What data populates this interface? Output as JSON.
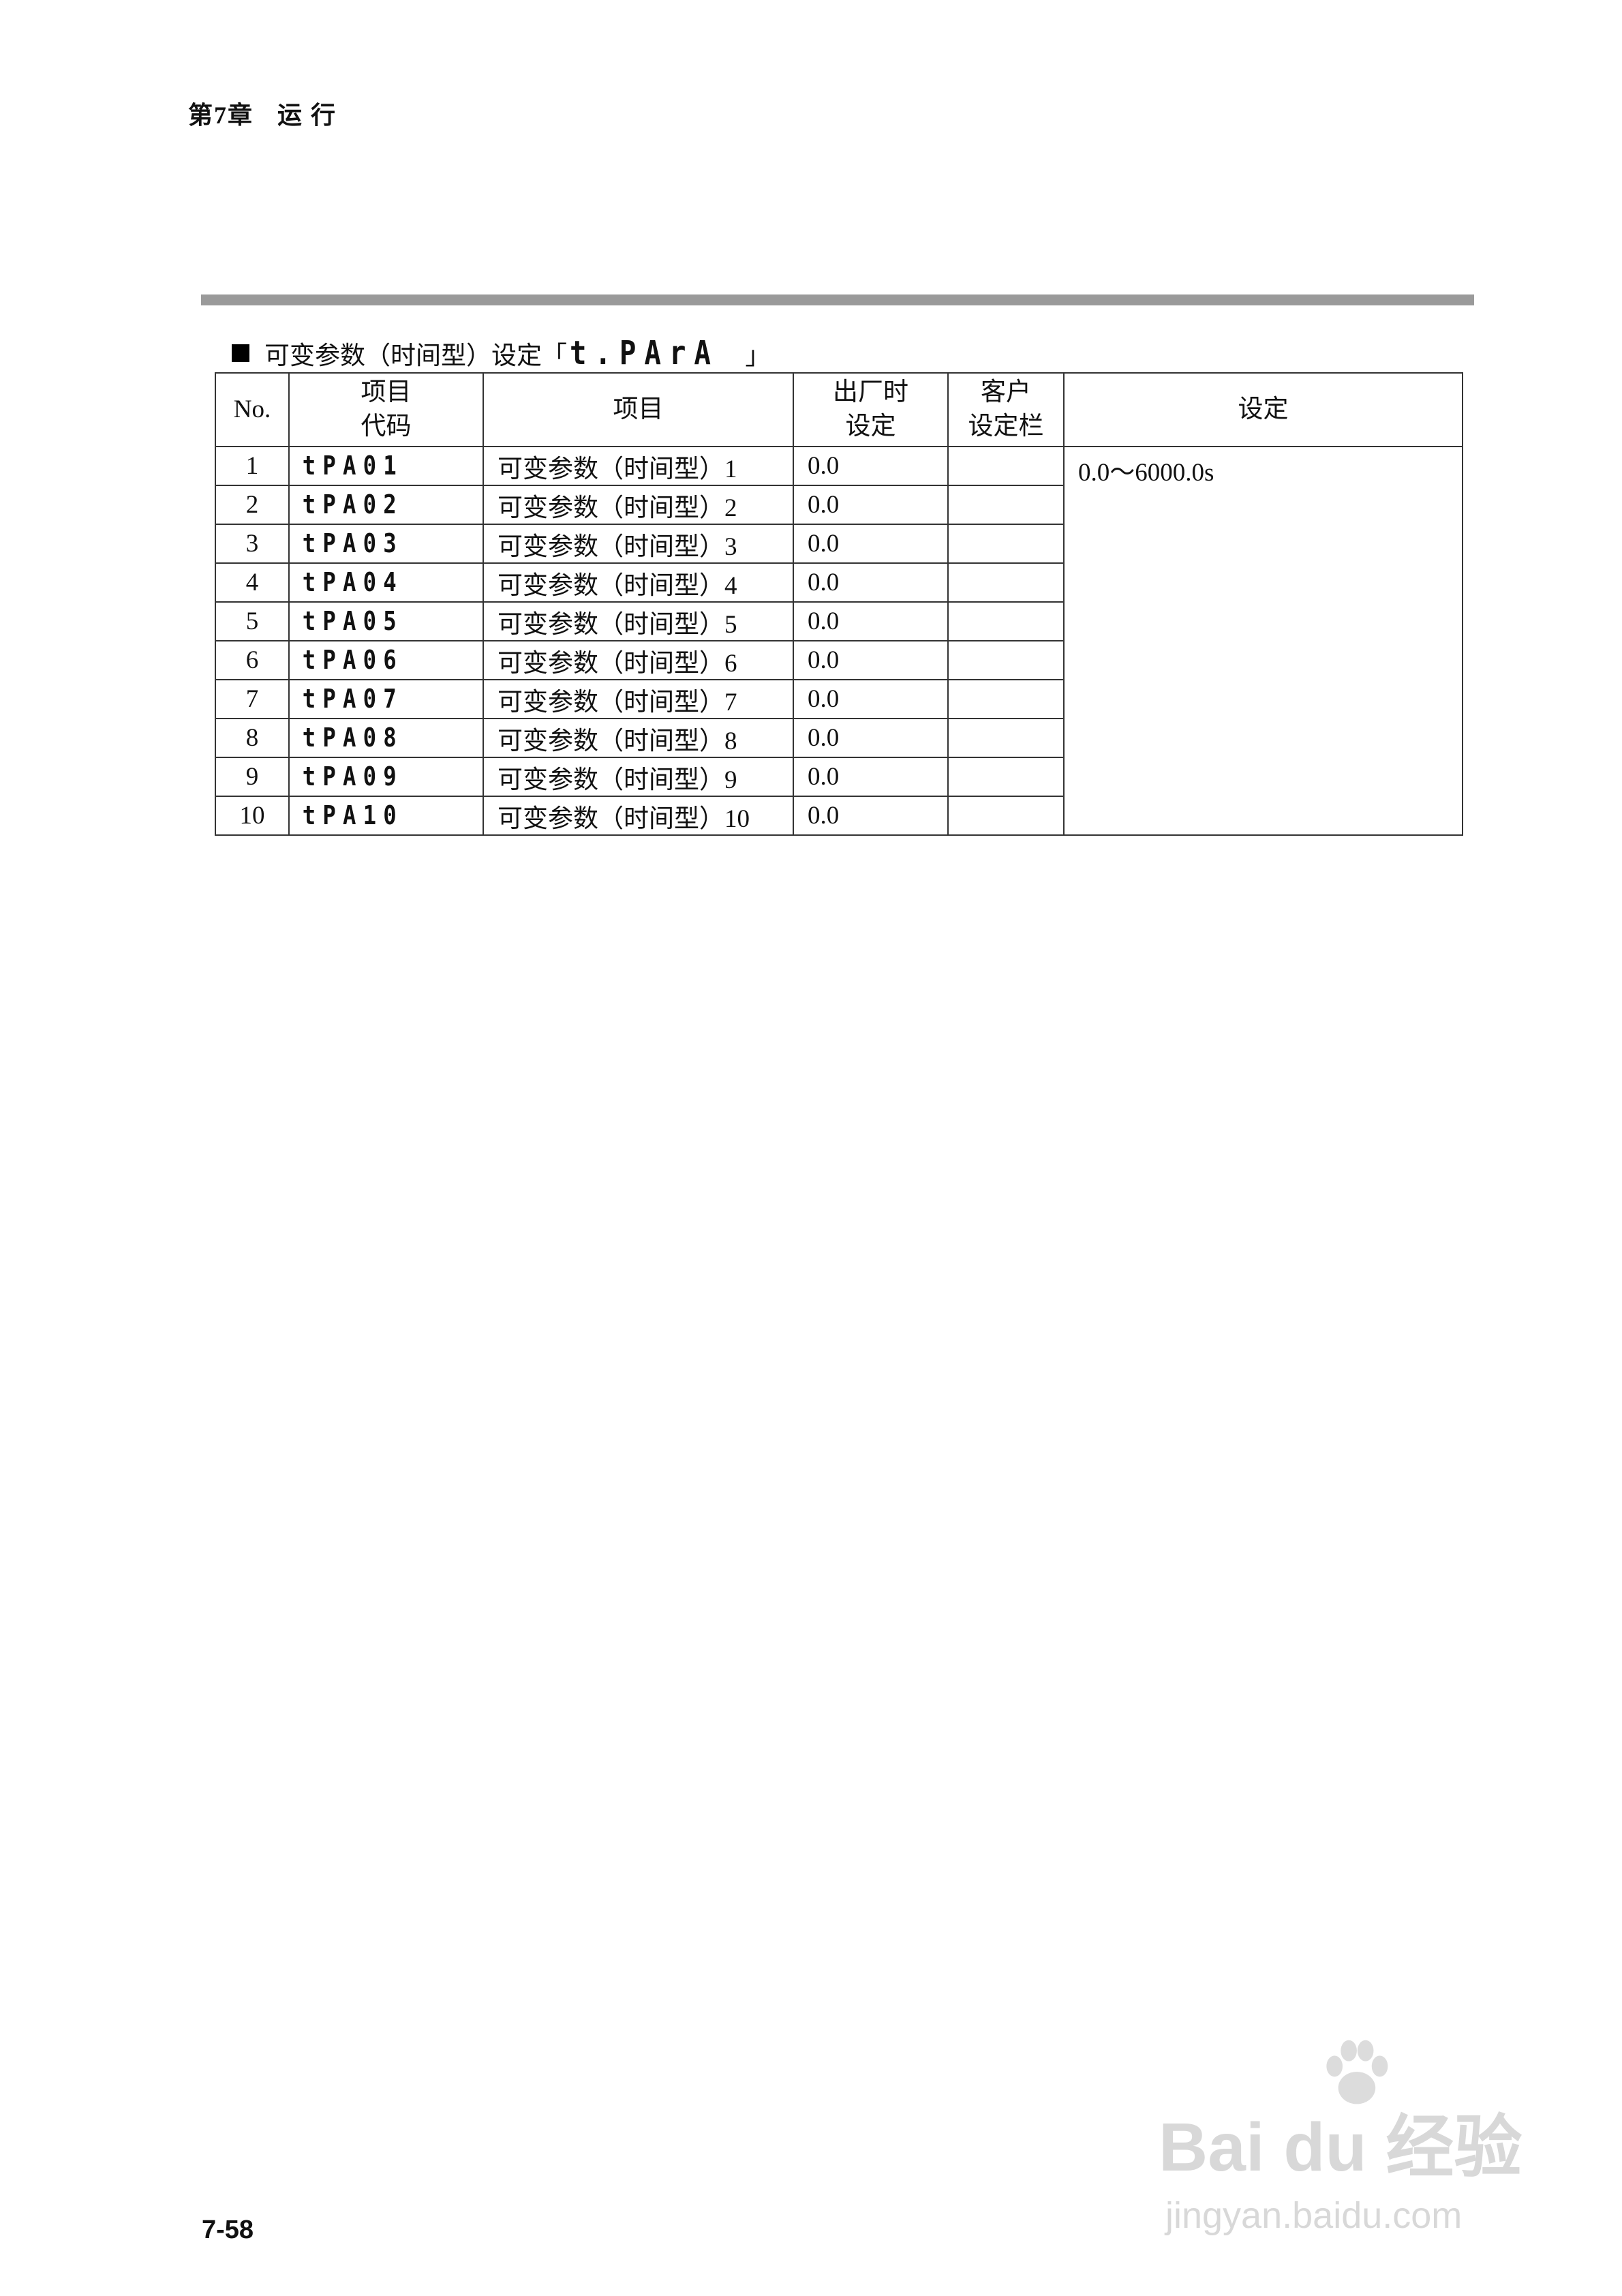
{
  "header": {
    "chapter": "第7章",
    "chapter_title": "运 行"
  },
  "section": {
    "title": "可变参数（时间型）设定「",
    "code": "t.PArA",
    "close": "」"
  },
  "table": {
    "headers": {
      "no": "No.",
      "code_line1": "项目",
      "code_line2": "代码",
      "item": "项目",
      "factory_line1": "出厂时",
      "factory_line2": "设定",
      "customer_line1": "客户",
      "customer_line2": "设定栏",
      "setting": "设定"
    },
    "setting_range": "0.0～6000.0s",
    "rows": [
      {
        "no": "1",
        "code": "tPA01",
        "item": "可变参数（时间型）1",
        "factory": "0.0",
        "customer": ""
      },
      {
        "no": "2",
        "code": "tPA02",
        "item": "可变参数（时间型）2",
        "factory": "0.0",
        "customer": ""
      },
      {
        "no": "3",
        "code": "tPA03",
        "item": "可变参数（时间型）3",
        "factory": "0.0",
        "customer": ""
      },
      {
        "no": "4",
        "code": "tPA04",
        "item": "可变参数（时间型）4",
        "factory": "0.0",
        "customer": ""
      },
      {
        "no": "5",
        "code": "tPA05",
        "item": "可变参数（时间型）5",
        "factory": "0.0",
        "customer": ""
      },
      {
        "no": "6",
        "code": "tPA06",
        "item": "可变参数（时间型）6",
        "factory": "0.0",
        "customer": ""
      },
      {
        "no": "7",
        "code": "tPA07",
        "item": "可变参数（时间型）7",
        "factory": "0.0",
        "customer": ""
      },
      {
        "no": "8",
        "code": "tPA08",
        "item": "可变参数（时间型）8",
        "factory": "0.0",
        "customer": ""
      },
      {
        "no": "9",
        "code": "tPA09",
        "item": "可变参数（时间型）9",
        "factory": "0.0",
        "customer": ""
      },
      {
        "no": "10",
        "code": "tPA10",
        "item": "可变参数（时间型）10",
        "factory": "0.0",
        "customer": ""
      }
    ]
  },
  "footer": {
    "page_number": "7-58"
  },
  "watermark": {
    "brand": "Bai du 经验",
    "url": "jingyan.baidu.com"
  }
}
